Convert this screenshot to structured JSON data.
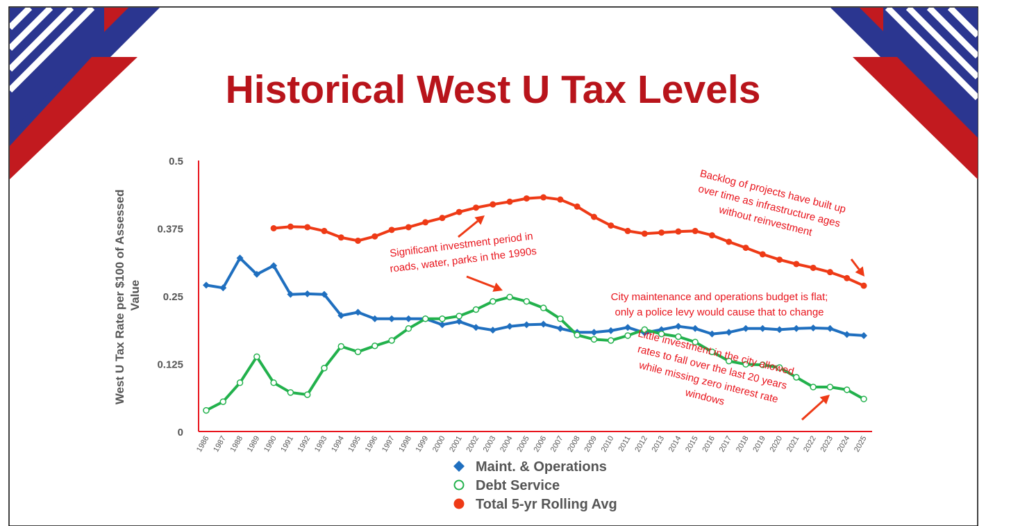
{
  "slide": {
    "title": "Historical West U Tax Levels",
    "colors": {
      "title_red": "#b8141b",
      "navy": "#2b3690",
      "banner_red": "#c21a1f",
      "annotation_red": "#e8141c",
      "axis_red": "#e8141c",
      "tick_text": "#555555"
    }
  },
  "chart_data": {
    "type": "line",
    "ylabel": "West U Tax Rate per $100 of Assessed Value",
    "xlabel": "",
    "ylim": [
      0,
      0.5
    ],
    "yticks": [
      "0",
      "0.125",
      "0.25",
      "0.375",
      "0.5"
    ],
    "grid": false,
    "legend_position": "bottom",
    "x": [
      "1986",
      "1987",
      "1988",
      "1989",
      "1990",
      "1991",
      "1992",
      "1993",
      "1994",
      "1995",
      "1996",
      "1997",
      "1998",
      "1999",
      "2000",
      "2001",
      "2002",
      "2003",
      "2004",
      "2005",
      "2006",
      "2007",
      "2008",
      "2009",
      "2010",
      "2011",
      "2012",
      "2013",
      "2014",
      "2015",
      "2016",
      "2017",
      "2018",
      "2019",
      "2020",
      "2021",
      "2022",
      "2023",
      "2024",
      "2025"
    ],
    "series": [
      {
        "name": "Maint. & Operations",
        "color": "#1f6fbf",
        "marker": "diamond",
        "values": [
          0.27,
          0.265,
          0.32,
          0.29,
          0.306,
          0.253,
          0.254,
          0.253,
          0.214,
          0.22,
          0.208,
          0.208,
          0.208,
          0.208,
          0.197,
          0.203,
          0.192,
          0.187,
          0.194,
          0.197,
          0.198,
          0.19,
          0.183,
          0.183,
          0.186,
          0.192,
          0.182,
          0.188,
          0.194,
          0.19,
          0.18,
          0.183,
          0.19,
          0.19,
          0.188,
          0.19,
          0.191,
          0.19,
          0.179,
          0.177
        ]
      },
      {
        "name": "Debt Service",
        "color": "#22b14c",
        "marker": "circle-open",
        "values": [
          0.039,
          0.055,
          0.09,
          0.138,
          0.09,
          0.072,
          0.068,
          0.117,
          0.157,
          0.147,
          0.158,
          0.168,
          0.19,
          0.208,
          0.208,
          0.213,
          0.225,
          0.24,
          0.248,
          0.24,
          0.228,
          0.208,
          0.178,
          0.17,
          0.168,
          0.177,
          0.188,
          0.18,
          0.175,
          0.165,
          0.147,
          0.13,
          0.124,
          0.123,
          0.118,
          0.1,
          0.082,
          0.082,
          0.077,
          0.06
        ]
      },
      {
        "name": "Total 5-yr Rolling Avg",
        "color": "#ee3a16",
        "marker": "circle",
        "values": [
          null,
          null,
          null,
          null,
          0.375,
          0.378,
          0.377,
          0.37,
          0.358,
          0.352,
          0.36,
          0.372,
          0.377,
          0.386,
          0.394,
          0.405,
          0.413,
          0.419,
          0.424,
          0.43,
          0.432,
          0.428,
          0.415,
          0.396,
          0.38,
          0.37,
          0.365,
          0.367,
          0.369,
          0.37,
          0.362,
          0.35,
          0.339,
          0.327,
          0.317,
          0.309,
          0.302,
          0.294,
          0.283,
          0.269
        ]
      }
    ],
    "annotations": [
      {
        "lines": [
          "Significant investment period in",
          "roads, water, parks in the 1990s"
        ]
      },
      {
        "lines": [
          "Backlog of projects have built up",
          "over time as infrastructure ages",
          "without reinvestment"
        ]
      },
      {
        "lines": [
          "City maintenance and operations budget is flat;",
          "only a police levy would cause that to change"
        ]
      },
      {
        "lines": [
          "Little investment in the city allowed",
          "rates to fall over the last 20 years",
          "while missing zero interest rate",
          "windows"
        ]
      }
    ]
  }
}
